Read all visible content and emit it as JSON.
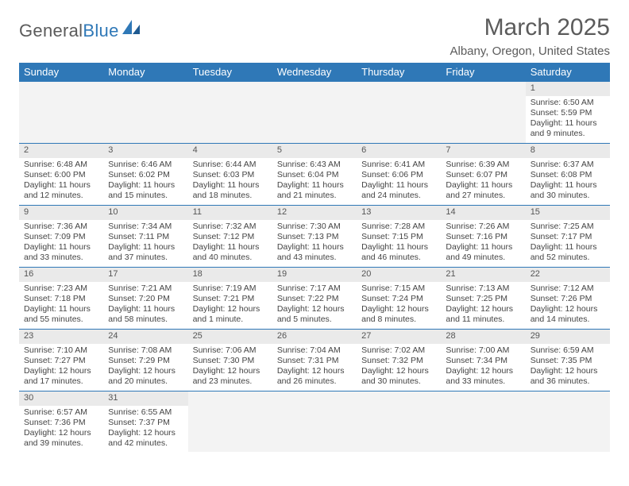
{
  "logo": {
    "word1": "General",
    "word2": "Blue",
    "color_text": "#5b5b5b",
    "color_accent": "#2f78b7"
  },
  "title": "March 2025",
  "location": "Albany, Oregon, United States",
  "calendar": {
    "header_bg": "#2f78b7",
    "header_fg": "#ffffff",
    "rule_color": "#2f78b7",
    "empty_bg": "#f3f3f3",
    "daybar_bg": "#eaeaea",
    "font_family": "Arial",
    "cell_fontsize_pt": 8,
    "header_fontsize_pt": 10,
    "days": [
      "Sunday",
      "Monday",
      "Tuesday",
      "Wednesday",
      "Thursday",
      "Friday",
      "Saturday"
    ],
    "weeks": [
      [
        null,
        null,
        null,
        null,
        null,
        null,
        {
          "n": 1,
          "sunrise": "6:50 AM",
          "sunset": "5:59 PM",
          "daylight": "11 hours and 9 minutes."
        }
      ],
      [
        {
          "n": 2,
          "sunrise": "6:48 AM",
          "sunset": "6:00 PM",
          "daylight": "11 hours and 12 minutes."
        },
        {
          "n": 3,
          "sunrise": "6:46 AM",
          "sunset": "6:02 PM",
          "daylight": "11 hours and 15 minutes."
        },
        {
          "n": 4,
          "sunrise": "6:44 AM",
          "sunset": "6:03 PM",
          "daylight": "11 hours and 18 minutes."
        },
        {
          "n": 5,
          "sunrise": "6:43 AM",
          "sunset": "6:04 PM",
          "daylight": "11 hours and 21 minutes."
        },
        {
          "n": 6,
          "sunrise": "6:41 AM",
          "sunset": "6:06 PM",
          "daylight": "11 hours and 24 minutes."
        },
        {
          "n": 7,
          "sunrise": "6:39 AM",
          "sunset": "6:07 PM",
          "daylight": "11 hours and 27 minutes."
        },
        {
          "n": 8,
          "sunrise": "6:37 AM",
          "sunset": "6:08 PM",
          "daylight": "11 hours and 30 minutes."
        }
      ],
      [
        {
          "n": 9,
          "sunrise": "7:36 AM",
          "sunset": "7:09 PM",
          "daylight": "11 hours and 33 minutes."
        },
        {
          "n": 10,
          "sunrise": "7:34 AM",
          "sunset": "7:11 PM",
          "daylight": "11 hours and 37 minutes."
        },
        {
          "n": 11,
          "sunrise": "7:32 AM",
          "sunset": "7:12 PM",
          "daylight": "11 hours and 40 minutes."
        },
        {
          "n": 12,
          "sunrise": "7:30 AM",
          "sunset": "7:13 PM",
          "daylight": "11 hours and 43 minutes."
        },
        {
          "n": 13,
          "sunrise": "7:28 AM",
          "sunset": "7:15 PM",
          "daylight": "11 hours and 46 minutes."
        },
        {
          "n": 14,
          "sunrise": "7:26 AM",
          "sunset": "7:16 PM",
          "daylight": "11 hours and 49 minutes."
        },
        {
          "n": 15,
          "sunrise": "7:25 AM",
          "sunset": "7:17 PM",
          "daylight": "11 hours and 52 minutes."
        }
      ],
      [
        {
          "n": 16,
          "sunrise": "7:23 AM",
          "sunset": "7:18 PM",
          "daylight": "11 hours and 55 minutes."
        },
        {
          "n": 17,
          "sunrise": "7:21 AM",
          "sunset": "7:20 PM",
          "daylight": "11 hours and 58 minutes."
        },
        {
          "n": 18,
          "sunrise": "7:19 AM",
          "sunset": "7:21 PM",
          "daylight": "12 hours and 1 minute."
        },
        {
          "n": 19,
          "sunrise": "7:17 AM",
          "sunset": "7:22 PM",
          "daylight": "12 hours and 5 minutes."
        },
        {
          "n": 20,
          "sunrise": "7:15 AM",
          "sunset": "7:24 PM",
          "daylight": "12 hours and 8 minutes."
        },
        {
          "n": 21,
          "sunrise": "7:13 AM",
          "sunset": "7:25 PM",
          "daylight": "12 hours and 11 minutes."
        },
        {
          "n": 22,
          "sunrise": "7:12 AM",
          "sunset": "7:26 PM",
          "daylight": "12 hours and 14 minutes."
        }
      ],
      [
        {
          "n": 23,
          "sunrise": "7:10 AM",
          "sunset": "7:27 PM",
          "daylight": "12 hours and 17 minutes."
        },
        {
          "n": 24,
          "sunrise": "7:08 AM",
          "sunset": "7:29 PM",
          "daylight": "12 hours and 20 minutes."
        },
        {
          "n": 25,
          "sunrise": "7:06 AM",
          "sunset": "7:30 PM",
          "daylight": "12 hours and 23 minutes."
        },
        {
          "n": 26,
          "sunrise": "7:04 AM",
          "sunset": "7:31 PM",
          "daylight": "12 hours and 26 minutes."
        },
        {
          "n": 27,
          "sunrise": "7:02 AM",
          "sunset": "7:32 PM",
          "daylight": "12 hours and 30 minutes."
        },
        {
          "n": 28,
          "sunrise": "7:00 AM",
          "sunset": "7:34 PM",
          "daylight": "12 hours and 33 minutes."
        },
        {
          "n": 29,
          "sunrise": "6:59 AM",
          "sunset": "7:35 PM",
          "daylight": "12 hours and 36 minutes."
        }
      ],
      [
        {
          "n": 30,
          "sunrise": "6:57 AM",
          "sunset": "7:36 PM",
          "daylight": "12 hours and 39 minutes."
        },
        {
          "n": 31,
          "sunrise": "6:55 AM",
          "sunset": "7:37 PM",
          "daylight": "12 hours and 42 minutes."
        },
        null,
        null,
        null,
        null,
        null
      ]
    ],
    "labels": {
      "sunrise": "Sunrise: ",
      "sunset": "Sunset: ",
      "daylight": "Daylight: "
    }
  }
}
